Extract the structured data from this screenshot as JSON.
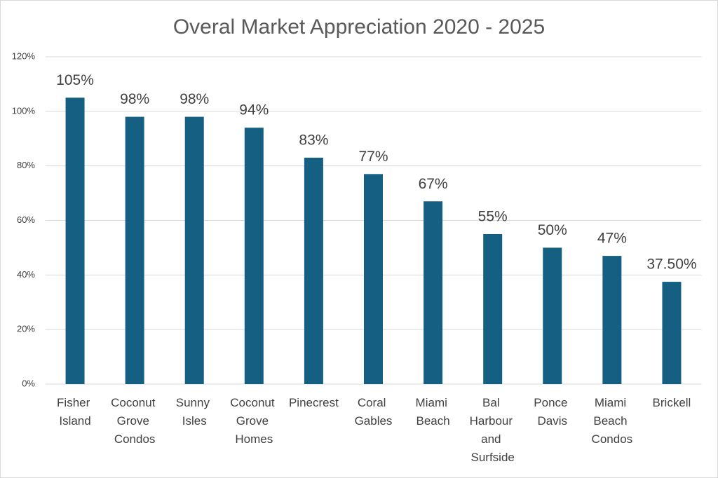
{
  "chart_data": {
    "type": "bar",
    "title": "Overal Market Appreciation 2020 - 2025",
    "categories": [
      "Fisher Island",
      "Coconut Grove Condos",
      "Sunny Isles",
      "Coconut Grove Homes",
      "Pinecrest",
      "Coral Gables",
      "Miami Beach",
      "Bal Harbour and Surfside",
      "Ponce Davis",
      "Miami Beach Condos",
      "Brickell"
    ],
    "values": [
      105,
      98,
      98,
      94,
      83,
      77,
      67,
      55,
      50,
      47,
      37.5
    ],
    "value_labels": [
      "105%",
      "98%",
      "98%",
      "94%",
      "83%",
      "77%",
      "67%",
      "55%",
      "50%",
      "47%",
      "37.50%"
    ],
    "color": "#156082",
    "ylim": [
      0,
      120
    ],
    "yticks": [
      {
        "value": 0,
        "label": "0%"
      },
      {
        "value": 20,
        "label": "20%"
      },
      {
        "value": 40,
        "label": "40%"
      },
      {
        "value": 60,
        "label": "60%"
      },
      {
        "value": 80,
        "label": "80%"
      },
      {
        "value": 100,
        "label": "100%"
      },
      {
        "value": 120,
        "label": "120%"
      }
    ],
    "grid": true
  }
}
